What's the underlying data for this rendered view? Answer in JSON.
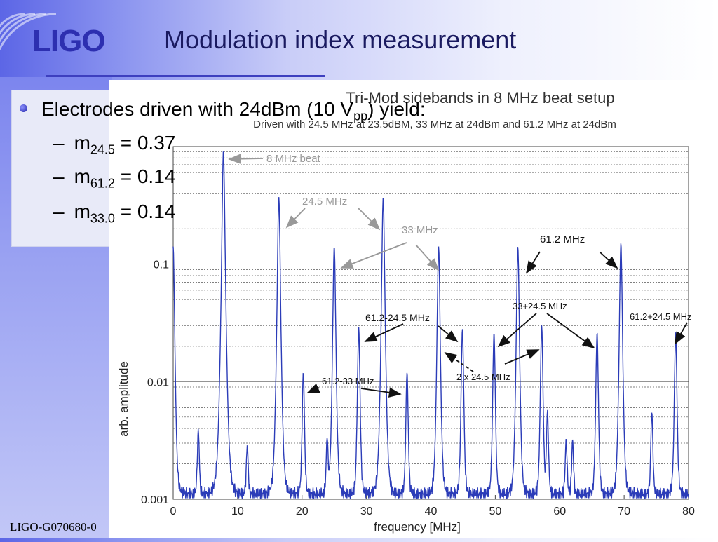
{
  "slide": {
    "logo": "LIGO",
    "title": "Modulation index measurement",
    "footer": "LIGO-G070680-0",
    "bullet": {
      "pre": "Electrodes driven with 24dBm (10 V",
      "sub": "pp",
      "post": ") yield:"
    },
    "subbullets": [
      {
        "dash": "–",
        "m": "m",
        "sub": "24.5",
        "rest": " = 0.37"
      },
      {
        "dash": "–",
        "m": "m",
        "sub": "61.2",
        "rest": " = 0.14"
      },
      {
        "dash": "–",
        "m": "m",
        "sub": "33.0",
        "rest": " = 0.14"
      }
    ]
  },
  "colors": {
    "accent": "#3d3fbf",
    "trace": "#2b3cb8",
    "logo": "#2d2fb0"
  },
  "chart_data": {
    "type": "line",
    "title": "Tri-Mod sidebands in 8 MHz beat setup",
    "subtitle": "Driven with 24.5 MHz at 23.5dBM, 33 MHz at 24dBm and 61.2 MHz at 24dBm",
    "xlabel": "frequency [MHz]",
    "ylabel": "arb. amplitude",
    "xlim": [
      0,
      80
    ],
    "ylim": [
      0.001,
      1
    ],
    "yscale": "log",
    "grid": true,
    "xticks": [
      "0",
      "10",
      "20",
      "30",
      "40",
      "50",
      "60",
      "70",
      "80"
    ],
    "yticks": [
      "0.001",
      "0.01",
      "0.1"
    ],
    "baseline": 0.0011,
    "peaks": [
      {
        "x": 0.0,
        "y": 0.14
      },
      {
        "x": 3.9,
        "y": 0.0028
      },
      {
        "x": 7.8,
        "y": 0.93
      },
      {
        "x": 11.5,
        "y": 0.0018
      },
      {
        "x": 16.4,
        "y": 0.37
      },
      {
        "x": 20.2,
        "y": 0.011
      },
      {
        "x": 23.9,
        "y": 0.0022
      },
      {
        "x": 25.0,
        "y": 0.14
      },
      {
        "x": 28.8,
        "y": 0.028
      },
      {
        "x": 32.6,
        "y": 0.37
      },
      {
        "x": 36.3,
        "y": 0.011
      },
      {
        "x": 41.2,
        "y": 0.14
      },
      {
        "x": 44.9,
        "y": 0.027
      },
      {
        "x": 49.8,
        "y": 0.025
      },
      {
        "x": 53.5,
        "y": 0.14
      },
      {
        "x": 57.2,
        "y": 0.029
      },
      {
        "x": 58.1,
        "y": 0.0045
      },
      {
        "x": 61.0,
        "y": 0.0021
      },
      {
        "x": 62.0,
        "y": 0.0021
      },
      {
        "x": 65.8,
        "y": 0.025
      },
      {
        "x": 69.5,
        "y": 0.15
      },
      {
        "x": 74.3,
        "y": 0.0045
      },
      {
        "x": 78.0,
        "y": 0.025
      }
    ],
    "annotations": [
      {
        "text": "8 MHz beat"
      },
      {
        "text": "24.5 MHz"
      },
      {
        "text": "33 MHz"
      },
      {
        "text": "61.2 MHz"
      },
      {
        "text": "33+24.5 MHz"
      },
      {
        "text": "61.2-24.5 MHz"
      },
      {
        "text": "61.2+24.5 MHz"
      },
      {
        "text": "61.2-33 MHz"
      },
      {
        "text": "2 x 24.5 MHz"
      }
    ]
  }
}
